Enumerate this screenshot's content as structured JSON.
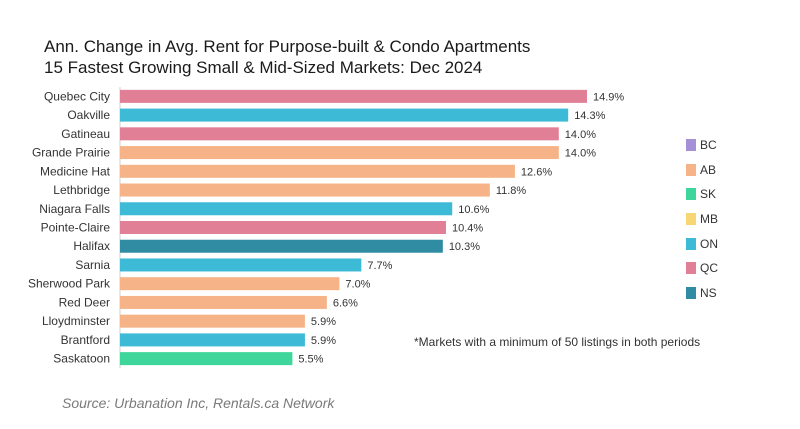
{
  "title_lines": [
    "Ann. Change in Avg. Rent for Purpose-built & Condo Apartments",
    "15 Fastest Growing Small & Mid-Sized Markets: Dec 2024"
  ],
  "footnote": "*Markets with a minimum of 50 listings in both periods",
  "source": "Source: Urbanation Inc, Rentals.ca Network",
  "legend": [
    {
      "label": "BC",
      "color": "#a58fd6"
    },
    {
      "label": "AB",
      "color": "#f5b387"
    },
    {
      "label": "SK",
      "color": "#3ed69a"
    },
    {
      "label": "MB",
      "color": "#f7d774"
    },
    {
      "label": "ON",
      "color": "#3cbad6"
    },
    {
      "label": "QC",
      "color": "#e07f96"
    },
    {
      "label": "NS",
      "color": "#2f8ca3"
    }
  ],
  "chart_data": {
    "type": "bar",
    "orientation": "horizontal",
    "value_suffix": "%",
    "xlim": [
      0,
      16
    ],
    "grid": false,
    "legend_position": "right",
    "categories": [
      "Quebec City",
      "Oakville",
      "Gatineau",
      "Grande Prairie",
      "Medicine Hat",
      "Lethbridge",
      "Niagara Falls",
      "Pointe-Claire",
      "Halifax",
      "Sarnia",
      "Sherwood Park",
      "Red Deer",
      "Lloydminster",
      "Brantford",
      "Saskatoon"
    ],
    "values": [
      14.9,
      14.3,
      14.0,
      14.0,
      12.6,
      11.8,
      10.6,
      10.4,
      10.3,
      7.7,
      7.0,
      6.6,
      5.9,
      5.9,
      5.5
    ],
    "data_labels": [
      "14.9%",
      "14.3%",
      "14.0%",
      "14.0%",
      "12.6%",
      "11.8%",
      "10.6%",
      "10.4%",
      "10.3%",
      "7.7%",
      "7.0%",
      "6.6%",
      "5.9%",
      "5.9%",
      "5.5%"
    ],
    "provinces": [
      "QC",
      "ON",
      "QC",
      "AB",
      "AB",
      "AB",
      "ON",
      "QC",
      "NS",
      "ON",
      "AB",
      "AB",
      "AB",
      "ON",
      "SK"
    ]
  }
}
